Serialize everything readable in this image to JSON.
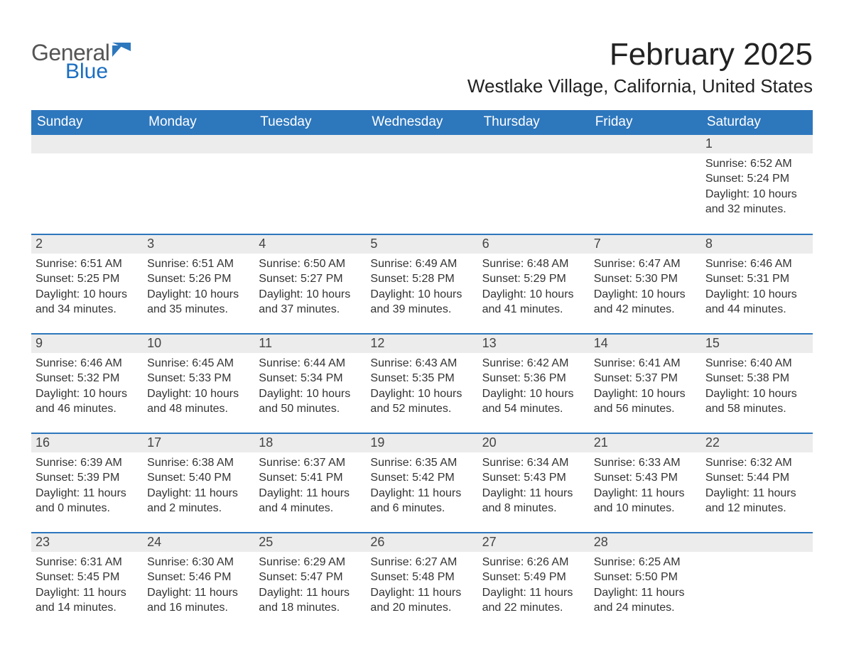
{
  "logo": {
    "general": "General",
    "blue": "Blue"
  },
  "title": "February 2025",
  "location": "Westlake Village, California, United States",
  "colors": {
    "header_blue": "#2d77bd",
    "accent_blue": "#1b6ec2",
    "daynum_bg": "#ececec",
    "text": "#333333",
    "background": "#ffffff"
  },
  "weekdays": [
    "Sunday",
    "Monday",
    "Tuesday",
    "Wednesday",
    "Thursday",
    "Friday",
    "Saturday"
  ],
  "weeks": [
    [
      null,
      null,
      null,
      null,
      null,
      null,
      {
        "n": "1",
        "sr": "Sunrise: 6:52 AM",
        "ss": "Sunset: 5:24 PM",
        "dl": "Daylight: 10 hours and 32 minutes."
      }
    ],
    [
      {
        "n": "2",
        "sr": "Sunrise: 6:51 AM",
        "ss": "Sunset: 5:25 PM",
        "dl": "Daylight: 10 hours and 34 minutes."
      },
      {
        "n": "3",
        "sr": "Sunrise: 6:51 AM",
        "ss": "Sunset: 5:26 PM",
        "dl": "Daylight: 10 hours and 35 minutes."
      },
      {
        "n": "4",
        "sr": "Sunrise: 6:50 AM",
        "ss": "Sunset: 5:27 PM",
        "dl": "Daylight: 10 hours and 37 minutes."
      },
      {
        "n": "5",
        "sr": "Sunrise: 6:49 AM",
        "ss": "Sunset: 5:28 PM",
        "dl": "Daylight: 10 hours and 39 minutes."
      },
      {
        "n": "6",
        "sr": "Sunrise: 6:48 AM",
        "ss": "Sunset: 5:29 PM",
        "dl": "Daylight: 10 hours and 41 minutes."
      },
      {
        "n": "7",
        "sr": "Sunrise: 6:47 AM",
        "ss": "Sunset: 5:30 PM",
        "dl": "Daylight: 10 hours and 42 minutes."
      },
      {
        "n": "8",
        "sr": "Sunrise: 6:46 AM",
        "ss": "Sunset: 5:31 PM",
        "dl": "Daylight: 10 hours and 44 minutes."
      }
    ],
    [
      {
        "n": "9",
        "sr": "Sunrise: 6:46 AM",
        "ss": "Sunset: 5:32 PM",
        "dl": "Daylight: 10 hours and 46 minutes."
      },
      {
        "n": "10",
        "sr": "Sunrise: 6:45 AM",
        "ss": "Sunset: 5:33 PM",
        "dl": "Daylight: 10 hours and 48 minutes."
      },
      {
        "n": "11",
        "sr": "Sunrise: 6:44 AM",
        "ss": "Sunset: 5:34 PM",
        "dl": "Daylight: 10 hours and 50 minutes."
      },
      {
        "n": "12",
        "sr": "Sunrise: 6:43 AM",
        "ss": "Sunset: 5:35 PM",
        "dl": "Daylight: 10 hours and 52 minutes."
      },
      {
        "n": "13",
        "sr": "Sunrise: 6:42 AM",
        "ss": "Sunset: 5:36 PM",
        "dl": "Daylight: 10 hours and 54 minutes."
      },
      {
        "n": "14",
        "sr": "Sunrise: 6:41 AM",
        "ss": "Sunset: 5:37 PM",
        "dl": "Daylight: 10 hours and 56 minutes."
      },
      {
        "n": "15",
        "sr": "Sunrise: 6:40 AM",
        "ss": "Sunset: 5:38 PM",
        "dl": "Daylight: 10 hours and 58 minutes."
      }
    ],
    [
      {
        "n": "16",
        "sr": "Sunrise: 6:39 AM",
        "ss": "Sunset: 5:39 PM",
        "dl": "Daylight: 11 hours and 0 minutes."
      },
      {
        "n": "17",
        "sr": "Sunrise: 6:38 AM",
        "ss": "Sunset: 5:40 PM",
        "dl": "Daylight: 11 hours and 2 minutes."
      },
      {
        "n": "18",
        "sr": "Sunrise: 6:37 AM",
        "ss": "Sunset: 5:41 PM",
        "dl": "Daylight: 11 hours and 4 minutes."
      },
      {
        "n": "19",
        "sr": "Sunrise: 6:35 AM",
        "ss": "Sunset: 5:42 PM",
        "dl": "Daylight: 11 hours and 6 minutes."
      },
      {
        "n": "20",
        "sr": "Sunrise: 6:34 AM",
        "ss": "Sunset: 5:43 PM",
        "dl": "Daylight: 11 hours and 8 minutes."
      },
      {
        "n": "21",
        "sr": "Sunrise: 6:33 AM",
        "ss": "Sunset: 5:43 PM",
        "dl": "Daylight: 11 hours and 10 minutes."
      },
      {
        "n": "22",
        "sr": "Sunrise: 6:32 AM",
        "ss": "Sunset: 5:44 PM",
        "dl": "Daylight: 11 hours and 12 minutes."
      }
    ],
    [
      {
        "n": "23",
        "sr": "Sunrise: 6:31 AM",
        "ss": "Sunset: 5:45 PM",
        "dl": "Daylight: 11 hours and 14 minutes."
      },
      {
        "n": "24",
        "sr": "Sunrise: 6:30 AM",
        "ss": "Sunset: 5:46 PM",
        "dl": "Daylight: 11 hours and 16 minutes."
      },
      {
        "n": "25",
        "sr": "Sunrise: 6:29 AM",
        "ss": "Sunset: 5:47 PM",
        "dl": "Daylight: 11 hours and 18 minutes."
      },
      {
        "n": "26",
        "sr": "Sunrise: 6:27 AM",
        "ss": "Sunset: 5:48 PM",
        "dl": "Daylight: 11 hours and 20 minutes."
      },
      {
        "n": "27",
        "sr": "Sunrise: 6:26 AM",
        "ss": "Sunset: 5:49 PM",
        "dl": "Daylight: 11 hours and 22 minutes."
      },
      {
        "n": "28",
        "sr": "Sunrise: 6:25 AM",
        "ss": "Sunset: 5:50 PM",
        "dl": "Daylight: 11 hours and 24 minutes."
      },
      null
    ]
  ]
}
